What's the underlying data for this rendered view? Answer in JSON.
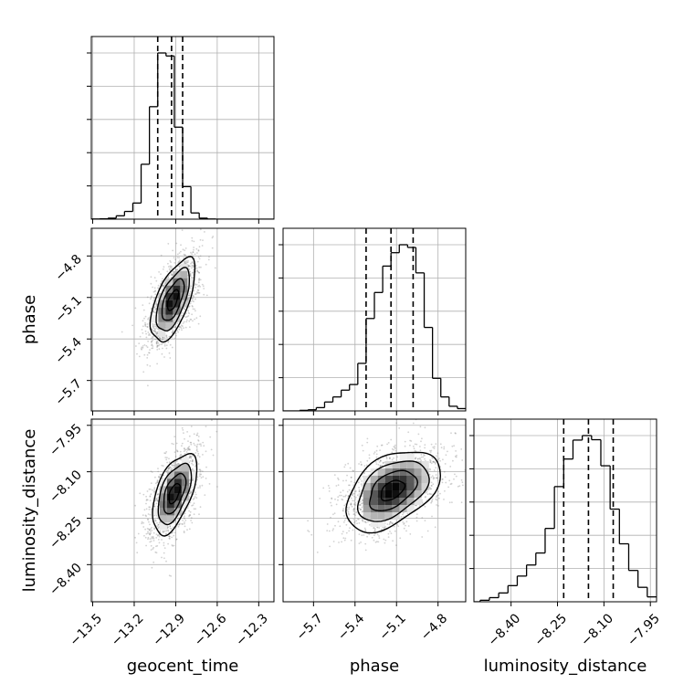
{
  "chart_data": {
    "type": "corner",
    "parameters": [
      "geocent_time",
      "phase",
      "luminosity_distance"
    ],
    "labels": {
      "geocent_time": "geocent_time",
      "phase": "phase",
      "luminosity_distance": "luminosity_distance"
    },
    "ranges": {
      "geocent_time": [
        -13.51,
        -12.19
      ],
      "phase": [
        -5.92,
        -4.6
      ],
      "luminosity_distance": [
        -8.52,
        -7.93
      ]
    },
    "ticks": {
      "geocent_time": [
        -13.5,
        -13.2,
        -12.9,
        -12.6,
        -12.3
      ],
      "phase": [
        -5.7,
        -5.4,
        -5.1,
        -4.8
      ],
      "luminosity_distance": [
        -8.4,
        -8.25,
        -8.1,
        -7.95
      ]
    },
    "tick_labels": {
      "geocent_time": [
        "−13.5",
        "−13.2",
        "−12.9",
        "−12.6",
        "−12.3"
      ],
      "phase": [
        "−5.7",
        "−5.4",
        "−5.1",
        "−4.8"
      ],
      "luminosity_distance": [
        "−8.40",
        "−8.25",
        "−8.10",
        "−7.95"
      ]
    },
    "quantiles": {
      "geocent_time": [
        -13.03,
        -12.93,
        -12.85
      ],
      "phase": [
        -5.32,
        -5.14,
        -4.98
      ],
      "luminosity_distance": [
        -8.23,
        -8.15,
        -8.07
      ]
    },
    "histograms": {
      "geocent_time": {
        "edges": [
          -13.51,
          -13.45,
          -13.39,
          -13.33,
          -13.27,
          -13.21,
          -13.15,
          -13.09,
          -13.03,
          -12.97,
          -12.91,
          -12.85,
          -12.79,
          -12.73,
          -12.67,
          -12.61,
          -12.55,
          -12.49,
          -12.43,
          -12.37,
          -12.31,
          -12.25,
          -12.19
        ],
        "counts": [
          1,
          2,
          6,
          20,
          46,
          96,
          327,
          670,
          990,
          972,
          548,
          194,
          37,
          6,
          1,
          0,
          0,
          0,
          0,
          0,
          0,
          0
        ]
      },
      "phase": {
        "edges": [
          -5.92,
          -5.86,
          -5.8,
          -5.74,
          -5.68,
          -5.62,
          -5.56,
          -5.5,
          -5.44,
          -5.38,
          -5.32,
          -5.26,
          -5.2,
          -5.14,
          -5.08,
          -5.02,
          -4.96,
          -4.9,
          -4.84,
          -4.78,
          -4.72,
          -4.66,
          -4.6
        ],
        "counts": [
          0,
          0,
          3,
          6,
          17,
          46,
          72,
          107,
          136,
          245,
          476,
          610,
          746,
          815,
          856,
          842,
          711,
          430,
          168,
          72,
          24,
          12
        ]
      },
      "luminosity_distance": {
        "edges": [
          -8.52,
          -8.5,
          -8.47,
          -8.44,
          -8.41,
          -8.38,
          -8.35,
          -8.32,
          -8.29,
          -8.26,
          -8.23,
          -8.2,
          -8.17,
          -8.14,
          -8.11,
          -8.08,
          -8.05,
          -8.02,
          -7.99,
          -7.96,
          -7.93
        ],
        "counts": [
          0,
          8,
          22,
          47,
          86,
          137,
          196,
          260,
          391,
          614,
          761,
          862,
          886,
          864,
          725,
          494,
          309,
          167,
          77,
          26
        ]
      }
    },
    "densities": [
      {
        "x": "geocent_time",
        "y": "phase",
        "center": [
          -12.92,
          -5.12
        ],
        "sigma": [
          0.08,
          0.15
        ],
        "rho": 0.62
      },
      {
        "x": "geocent_time",
        "y": "luminosity_distance",
        "center": [
          -12.91,
          -8.17
        ],
        "sigma": [
          0.08,
          0.065
        ],
        "rho": 0.55
      },
      {
        "x": "phase",
        "y": "luminosity_distance",
        "center": [
          -5.13,
          -8.16
        ],
        "sigma": [
          0.17,
          0.065
        ],
        "rho": 0.45
      }
    ],
    "contour_levels": [
      0.5,
      1.0,
      1.5,
      2.0
    ],
    "grid": true,
    "colors": {
      "line": "#000000",
      "grid": "#b0b0b0",
      "points": "#7f7f7f",
      "frame": "#000000"
    }
  }
}
